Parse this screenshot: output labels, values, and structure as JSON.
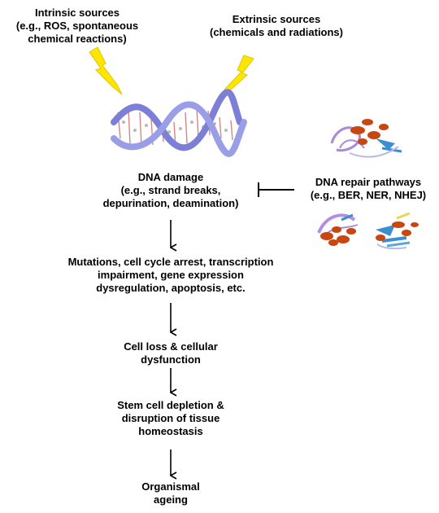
{
  "intrinsic": {
    "lines": [
      "Intrinsic sources",
      "(e.g., ROS, spontaneous",
      "chemical reactions)"
    ]
  },
  "extrinsic": {
    "lines": [
      "Extrinsic sources",
      "(chemicals and radiations)"
    ]
  },
  "dna_damage": {
    "lines": [
      "DNA damage",
      "(e.g., strand breaks,",
      "depurination, deamination)"
    ]
  },
  "repair": {
    "lines": [
      "DNA repair pathways",
      "(e.g., BER, NER, NHEJ)"
    ]
  },
  "mutations": {
    "lines": [
      "Mutations, cell cycle arrest, transcription",
      "impairment, gene expression",
      "dysregulation, apoptosis, etc."
    ]
  },
  "cell_loss": {
    "lines": [
      "Cell loss & cellular",
      "dysfunction"
    ]
  },
  "stem_cell": {
    "lines": [
      "Stem cell depletion &",
      "disruption of tissue",
      "homeostasis"
    ]
  },
  "ageing": {
    "lines": [
      "Organismal",
      "ageing"
    ]
  },
  "colors": {
    "lightning": "#ffe600",
    "helix": "#7b7fd6",
    "protein_orange": "#c8460f",
    "protein_blue": "#3a8fd0",
    "protein_purple": "#a98ad8"
  }
}
